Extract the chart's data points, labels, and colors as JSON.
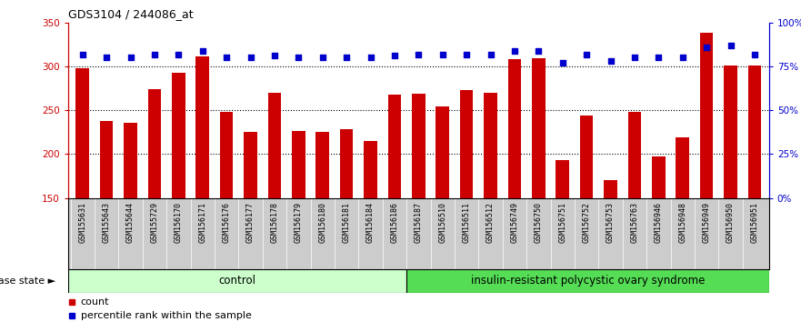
{
  "title": "GDS3104 / 244086_at",
  "samples": [
    "GSM155631",
    "GSM155643",
    "GSM155644",
    "GSM155729",
    "GSM156170",
    "GSM156171",
    "GSM156176",
    "GSM156177",
    "GSM156178",
    "GSM156179",
    "GSM156180",
    "GSM156181",
    "GSM156184",
    "GSM156186",
    "GSM156187",
    "GSM156510",
    "GSM156511",
    "GSM156512",
    "GSM156749",
    "GSM156750",
    "GSM156751",
    "GSM156752",
    "GSM156753",
    "GSM156763",
    "GSM156946",
    "GSM156948",
    "GSM156949",
    "GSM156950",
    "GSM156951"
  ],
  "counts": [
    298,
    238,
    236,
    274,
    293,
    311,
    248,
    225,
    270,
    226,
    225,
    228,
    215,
    268,
    269,
    254,
    273,
    270,
    308,
    309,
    193,
    244,
    170,
    248,
    197,
    219,
    338,
    301,
    301
  ],
  "percentiles": [
    82,
    80,
    80,
    82,
    82,
    84,
    80,
    80,
    81,
    80,
    80,
    80,
    80,
    81,
    82,
    82,
    82,
    82,
    84,
    84,
    77,
    82,
    78,
    80,
    80,
    80,
    86,
    87,
    82
  ],
  "bar_color": "#cc0000",
  "dot_color": "#0000cc",
  "ylim_left": [
    150,
    350
  ],
  "ylim_right": [
    0,
    100
  ],
  "yticks_left": [
    150,
    200,
    250,
    300,
    350
  ],
  "yticks_right": [
    0,
    25,
    50,
    75,
    100
  ],
  "control_count": 14,
  "disease_label": "insulin-resistant polycystic ovary syndrome",
  "control_label": "control",
  "disease_state_label": "disease state",
  "legend_count": "count",
  "legend_percentile": "percentile rank within the sample",
  "control_bg": "#ccffcc",
  "disease_bg": "#55dd55",
  "xlabel_bg": "#cccccc",
  "figure_width": 8.81,
  "figure_height": 3.54,
  "dpi": 100
}
